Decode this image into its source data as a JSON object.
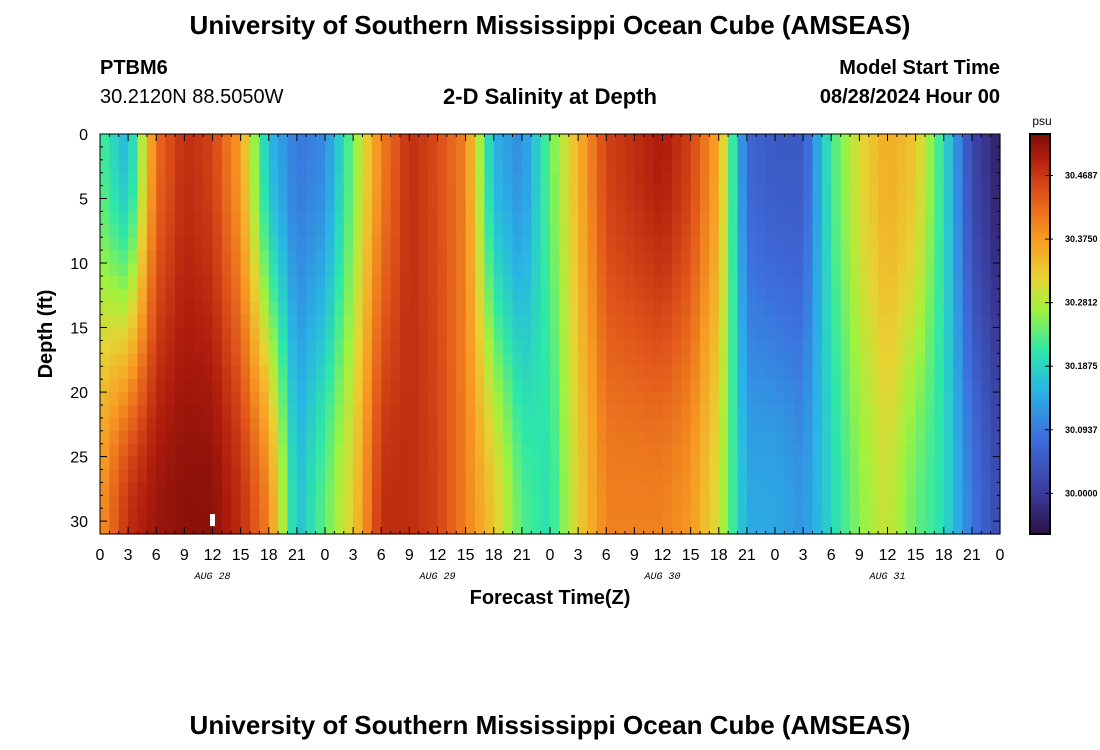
{
  "header": {
    "title": "University of Southern Mississippi Ocean Cube (AMSEAS)",
    "station": "PTBM6",
    "coordinates": "30.2120N  88.5050W",
    "model_start_label": "Model Start Time",
    "model_start_value": "08/28/2024 Hour 00"
  },
  "footer": {
    "title": "University of Southern Mississippi Ocean Cube (AMSEAS)"
  },
  "chart_data": {
    "type": "heatmap",
    "title": "2-D Salinity at Depth",
    "xlabel": "Forecast Time(Z)",
    "ylabel": "Depth (ft)",
    "xlim": [
      0,
      96
    ],
    "ylim": [
      0,
      31
    ],
    "x_ticks": [
      0,
      3,
      6,
      9,
      12,
      15,
      18,
      21,
      24,
      27,
      30,
      33,
      36,
      39,
      42,
      45,
      48,
      51,
      54,
      57,
      60,
      63,
      66,
      69,
      72,
      75,
      78,
      81,
      84,
      87,
      90,
      93,
      96
    ],
    "x_tick_labels": [
      "0",
      "3",
      "6",
      "9",
      "12",
      "15",
      "18",
      "21",
      "0",
      "3",
      "6",
      "9",
      "12",
      "15",
      "18",
      "21",
      "0",
      "3",
      "6",
      "9",
      "12",
      "15",
      "18",
      "21",
      "0",
      "3",
      "6",
      "9",
      "12",
      "15",
      "18",
      "21",
      "0"
    ],
    "day_labels": [
      {
        "hour": 12,
        "label": "AUG 28"
      },
      {
        "hour": 36,
        "label": "AUG 29"
      },
      {
        "hour": 60,
        "label": "AUG 30"
      },
      {
        "hour": 84,
        "label": "AUG 31"
      }
    ],
    "y_ticks": [
      0,
      5,
      10,
      15,
      20,
      25,
      30
    ],
    "y_tick_labels": [
      "0",
      "5",
      "10",
      "15",
      "20",
      "25",
      "30"
    ],
    "colorbar": {
      "units": "psu",
      "vmin": 29.94,
      "vmax": 30.53,
      "tick_values": [
        30.46875,
        30.375,
        30.28125,
        30.1875,
        30.09375,
        30.0
      ],
      "tick_labels": [
        "30.4687",
        "30.3750",
        "30.2812",
        "30.1875",
        "30.0937",
        "30.0000"
      ]
    },
    "surface_profile": {
      "hours": [
        0,
        3,
        6,
        9,
        12,
        15,
        18,
        21,
        24,
        27,
        30,
        33,
        36,
        39,
        42,
        45,
        48,
        51,
        54,
        57,
        60,
        63,
        66,
        69,
        72,
        75,
        78,
        81,
        84,
        87,
        90,
        93,
        96
      ],
      "values": [
        30.23,
        30.15,
        30.42,
        30.48,
        30.46,
        30.37,
        30.16,
        30.09,
        30.11,
        30.25,
        30.4,
        30.48,
        30.45,
        30.4,
        30.15,
        30.11,
        30.24,
        30.35,
        30.46,
        30.48,
        30.5,
        30.46,
        30.36,
        30.07,
        30.05,
        30.05,
        30.22,
        30.31,
        30.36,
        30.33,
        30.2,
        30.02,
        29.96
      ]
    },
    "bottom_profile": {
      "hours": [
        0,
        3,
        6,
        9,
        12,
        15,
        18,
        21,
        24,
        27,
        30,
        33,
        36,
        39,
        42,
        45,
        48,
        51,
        54,
        57,
        60,
        63,
        66,
        69,
        72,
        75,
        78,
        81,
        84,
        87,
        90,
        93,
        96
      ],
      "values": [
        30.38,
        30.48,
        30.51,
        30.52,
        30.52,
        30.48,
        30.4,
        30.16,
        30.24,
        30.32,
        30.48,
        30.48,
        30.46,
        30.4,
        30.33,
        30.23,
        30.2,
        30.32,
        30.4,
        30.4,
        30.4,
        30.38,
        30.3,
        30.14,
        30.14,
        30.12,
        30.19,
        30.26,
        30.3,
        30.24,
        30.2,
        30.09,
        30.02
      ]
    },
    "marker": {
      "hour": 12,
      "depth": 30,
      "symbol": "white bar"
    }
  }
}
